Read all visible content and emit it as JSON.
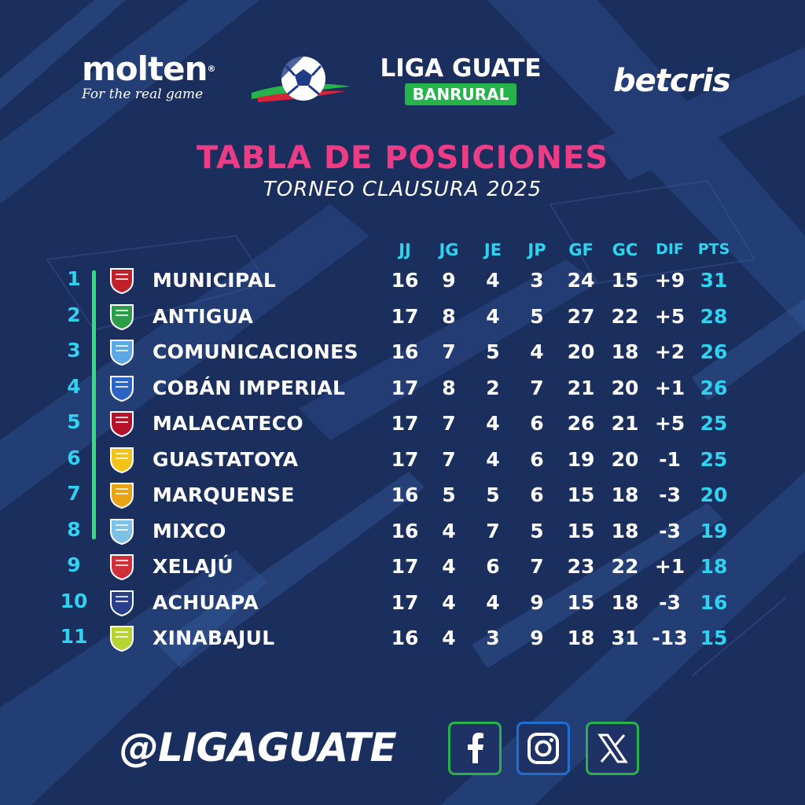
{
  "header": {
    "molten": {
      "name": "molten",
      "tagline": "For the real game"
    },
    "league": {
      "name": "LIGA GUATE",
      "sponsor": "BANRURAL"
    },
    "betcris": "betcris"
  },
  "title": "TABLA DE POSICIONES",
  "subtitle": "TORNEO CLAUSURA 2025",
  "columns": [
    "JJ",
    "JG",
    "JE",
    "JP",
    "GF",
    "GC",
    "DIF",
    "PTS"
  ],
  "standings": [
    {
      "pos": "1",
      "team": "MUNICIPAL",
      "jj": "16",
      "jg": "9",
      "je": "4",
      "jp": "3",
      "gf": "24",
      "gc": "15",
      "dif": "+9",
      "pts": "31",
      "crest_color": "#c0202a"
    },
    {
      "pos": "2",
      "team": "ANTIGUA",
      "jj": "17",
      "jg": "8",
      "je": "4",
      "jp": "5",
      "gf": "27",
      "gc": "22",
      "dif": "+5",
      "pts": "28",
      "crest_color": "#2e9d4a"
    },
    {
      "pos": "3",
      "team": "COMUNICACIONES",
      "jj": "16",
      "jg": "7",
      "je": "5",
      "jp": "4",
      "gf": "20",
      "gc": "18",
      "dif": "+2",
      "pts": "26",
      "crest_color": "#5aa9e6"
    },
    {
      "pos": "4",
      "team": "COBÁN IMPERIAL",
      "jj": "17",
      "jg": "8",
      "je": "2",
      "jp": "7",
      "gf": "21",
      "gc": "20",
      "dif": "+1",
      "pts": "26",
      "crest_color": "#2c63c4"
    },
    {
      "pos": "5",
      "team": "MALACATECO",
      "jj": "17",
      "jg": "7",
      "je": "4",
      "jp": "6",
      "gf": "26",
      "gc": "21",
      "dif": "+5",
      "pts": "25",
      "crest_color": "#b5122b"
    },
    {
      "pos": "6",
      "team": "GUASTATOYA",
      "jj": "17",
      "jg": "7",
      "je": "4",
      "jp": "6",
      "gf": "19",
      "gc": "20",
      "dif": "-1",
      "pts": "25",
      "crest_color": "#f2c417"
    },
    {
      "pos": "7",
      "team": "MARQUENSE",
      "jj": "16",
      "jg": "5",
      "je": "5",
      "jp": "6",
      "gf": "15",
      "gc": "18",
      "dif": "-3",
      "pts": "20",
      "crest_color": "#e8a317"
    },
    {
      "pos": "8",
      "team": "MIXCO",
      "jj": "16",
      "jg": "4",
      "je": "7",
      "jp": "5",
      "gf": "15",
      "gc": "18",
      "dif": "-3",
      "pts": "19",
      "crest_color": "#7fc0e8"
    },
    {
      "pos": "9",
      "team": "XELAJÚ",
      "jj": "17",
      "jg": "4",
      "je": "6",
      "jp": "7",
      "gf": "23",
      "gc": "22",
      "dif": "+1",
      "pts": "18",
      "crest_color": "#d12f3a"
    },
    {
      "pos": "10",
      "team": "ACHUAPA",
      "jj": "17",
      "jg": "4",
      "je": "4",
      "jp": "9",
      "gf": "15",
      "gc": "18",
      "dif": "-3",
      "pts": "16",
      "crest_color": "#2a3f8a"
    },
    {
      "pos": "11",
      "team": "XINABAJUL",
      "jj": "16",
      "jg": "4",
      "je": "3",
      "jp": "9",
      "gf": "18",
      "gc": "31",
      "dif": "-13",
      "pts": "15",
      "crest_color": "#b7d433"
    }
  ],
  "footer": {
    "handle": "@LIGAGUATE",
    "social": [
      "facebook-icon",
      "instagram-icon",
      "x-icon"
    ]
  },
  "colors": {
    "background": "#1b2f5e",
    "title": "#ee3b86",
    "accent": "#2fd3f0",
    "qualification": "#2fe07a"
  }
}
